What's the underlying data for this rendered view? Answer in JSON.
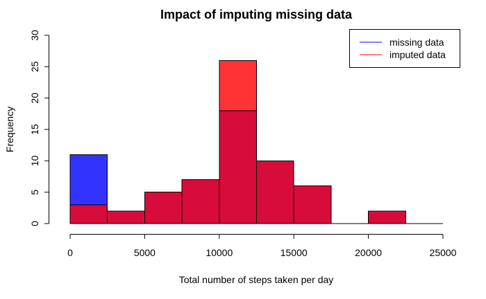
{
  "chart_data": {
    "type": "bar",
    "title": "Impact of imputing missing data",
    "xlabel": "Total number of steps taken per day",
    "ylabel": "Frequency",
    "xlim": [
      0,
      25000
    ],
    "ylim": [
      0,
      30
    ],
    "x_ticks": [
      "0",
      "5000",
      "10000",
      "15000",
      "20000",
      "25000"
    ],
    "y_ticks": [
      "0",
      "5",
      "10",
      "15",
      "20",
      "25",
      "30"
    ],
    "bins": [
      [
        0,
        2500
      ],
      [
        2500,
        5000
      ],
      [
        5000,
        7500
      ],
      [
        7500,
        10000
      ],
      [
        10000,
        12500
      ],
      [
        12500,
        15000
      ],
      [
        15000,
        17500
      ],
      [
        17500,
        20000
      ],
      [
        20000,
        22500
      ],
      [
        22500,
        25000
      ]
    ],
    "series": [
      {
        "name": "missing data",
        "color": "#3333ff",
        "values": [
          11,
          2,
          5,
          7,
          18,
          10,
          6,
          0,
          2,
          0
        ]
      },
      {
        "name": "imputed data",
        "color": "#ff3333",
        "values": [
          3,
          2,
          5,
          7,
          26,
          10,
          6,
          0,
          2,
          0
        ]
      }
    ],
    "overlap_color": "#d80c3a",
    "legend": {
      "placement": "top-right",
      "items": [
        {
          "label": "missing data",
          "color": "#0000ff"
        },
        {
          "label": "imputed data",
          "color": "#ff0000"
        }
      ]
    }
  }
}
